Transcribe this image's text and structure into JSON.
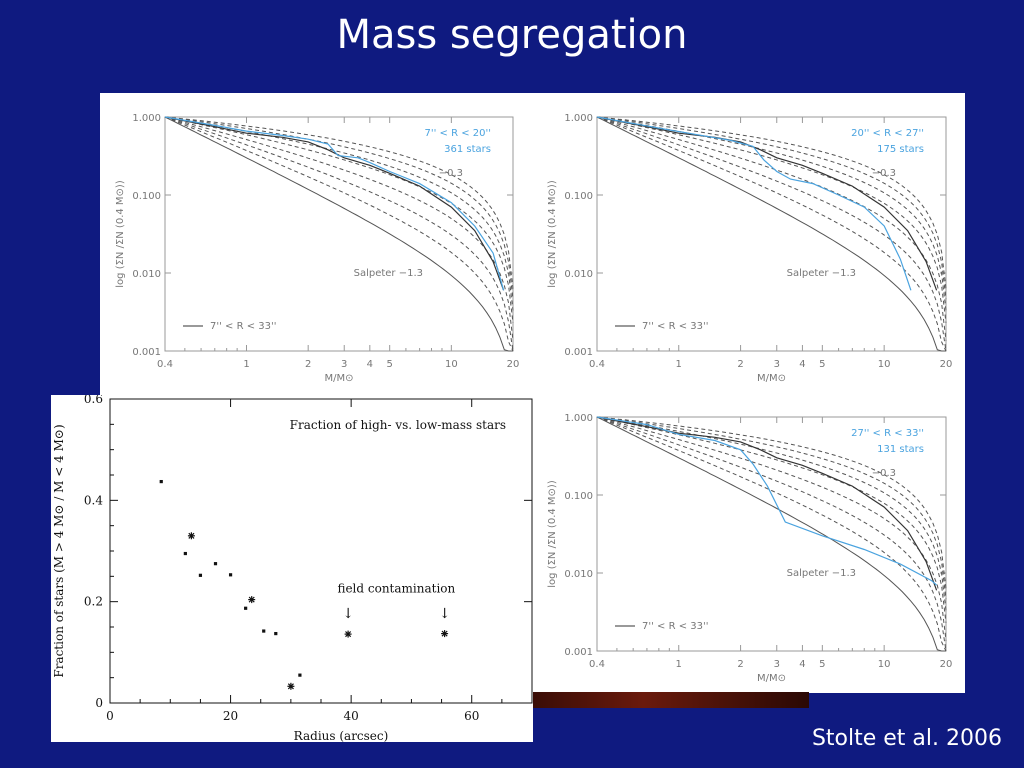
{
  "slide": {
    "title": "Mass segregation",
    "credit": "Stolte et al. 2006"
  },
  "colors": {
    "background": "#0f1a80",
    "highlight": "#4aa3df",
    "curve": "#333333"
  },
  "chart_data": [
    {
      "type": "line",
      "panel": "top-left",
      "xlabel": "M/M⊙",
      "ylabel": "log (ΣN /ΣN (0.4 M⊙))",
      "xscale": "log",
      "yscale": "log",
      "xlim": [
        0.4,
        20
      ],
      "ylim": [
        0.001,
        1.0
      ],
      "x_ticks": [
        "0.4",
        "1",
        "2",
        "3",
        "4",
        "5",
        "10",
        "20"
      ],
      "y_ticks": [
        "1.000",
        "0.100",
        "0.010",
        "0.001"
      ],
      "annotations": {
        "range": "7'' < R < 20''",
        "count": "361 stars",
        "slope": "−0.3",
        "salpeter": "Salpeter −1.3",
        "legend": "7'' < R < 33''"
      },
      "series": [
        {
          "x": [
            0.4,
            0.7,
            1,
            1.5,
            2,
            2.5,
            3,
            4,
            5,
            7,
            10,
            13,
            16,
            18
          ],
          "y": [
            1,
            0.75,
            0.62,
            0.55,
            0.48,
            0.38,
            0.3,
            0.24,
            0.19,
            0.13,
            0.07,
            0.035,
            0.014,
            0.006
          ]
        },
        {
          "x": [
            0.4,
            0.7,
            1,
            1.5,
            2,
            2.5,
            2.8,
            3.5,
            4,
            5,
            7,
            10,
            13,
            16,
            18
          ],
          "y": [
            1,
            0.78,
            0.66,
            0.58,
            0.52,
            0.45,
            0.32,
            0.3,
            0.26,
            0.2,
            0.14,
            0.08,
            0.04,
            0.018,
            0.006
          ]
        }
      ]
    },
    {
      "type": "line",
      "panel": "top-right",
      "xlabel": "M/M⊙",
      "ylabel": "log (ΣN /ΣN (0.4 M⊙))",
      "xscale": "log",
      "yscale": "log",
      "xlim": [
        0.4,
        20
      ],
      "ylim": [
        0.001,
        1.0
      ],
      "x_ticks": [
        "0.4",
        "1",
        "2",
        "3",
        "4",
        "5",
        "10",
        "20"
      ],
      "y_ticks": [
        "1.000",
        "0.100",
        "0.010",
        "0.001"
      ],
      "annotations": {
        "range": "20'' < R < 27''",
        "count": "175 stars",
        "slope": "−0.3",
        "salpeter": "Salpeter −1.3",
        "legend": "7'' < R < 33''"
      },
      "series": [
        {
          "x": [
            0.4,
            0.7,
            1,
            1.5,
            2,
            2.5,
            3,
            4,
            5,
            7,
            10,
            13,
            16,
            18
          ],
          "y": [
            1,
            0.75,
            0.62,
            0.55,
            0.48,
            0.38,
            0.3,
            0.24,
            0.19,
            0.13,
            0.07,
            0.035,
            0.014,
            0.006
          ]
        },
        {
          "x": [
            0.4,
            0.8,
            1.2,
            1.8,
            2.3,
            2.6,
            3,
            3.5,
            4.5,
            6,
            8,
            10,
            12,
            13.5
          ],
          "y": [
            1,
            0.72,
            0.6,
            0.5,
            0.42,
            0.28,
            0.2,
            0.16,
            0.14,
            0.1,
            0.07,
            0.04,
            0.015,
            0.006
          ]
        }
      ]
    },
    {
      "type": "line",
      "panel": "bottom-right",
      "xlabel": "M/M⊙",
      "ylabel": "log (ΣN /ΣN (0.4 M⊙))",
      "xscale": "log",
      "yscale": "log",
      "xlim": [
        0.4,
        20
      ],
      "ylim": [
        0.001,
        1.0
      ],
      "x_ticks": [
        "0.4",
        "1",
        "2",
        "3",
        "4",
        "5",
        "10",
        "20"
      ],
      "y_ticks": [
        "1.000",
        "0.100",
        "0.010",
        "0.001"
      ],
      "annotations": {
        "range": "27'' < R < 33''",
        "count": "131 stars",
        "slope": "−0.3",
        "salpeter": "Salpeter −1.3",
        "legend": "7'' < R < 33''"
      },
      "series": [
        {
          "x": [
            0.4,
            0.7,
            1,
            1.5,
            2,
            2.5,
            3,
            4,
            5,
            7,
            10,
            13,
            16,
            18
          ],
          "y": [
            1,
            0.75,
            0.62,
            0.55,
            0.48,
            0.38,
            0.3,
            0.24,
            0.19,
            0.13,
            0.07,
            0.035,
            0.014,
            0.006
          ]
        },
        {
          "x": [
            0.4,
            0.7,
            1,
            1.5,
            2,
            2.3,
            2.7,
            3.3,
            5,
            8,
            12,
            17,
            18
          ],
          "y": [
            1,
            0.8,
            0.6,
            0.5,
            0.38,
            0.25,
            0.13,
            0.045,
            0.03,
            0.02,
            0.013,
            0.008,
            0.007
          ]
        }
      ]
    },
    {
      "type": "scatter",
      "panel": "inset",
      "title": "Fraction of high- vs. low-mass stars",
      "xlabel": "Radius (arcsec)",
      "ylabel": "Fraction of stars (M > 4 M⊙ / M < 4 M⊙)",
      "xlim": [
        0,
        70
      ],
      "ylim": [
        0,
        0.6
      ],
      "x_ticks": [
        "0",
        "20",
        "40",
        "60"
      ],
      "y_ticks": [
        "0",
        "0.2",
        "0.4",
        "0.6"
      ],
      "annotation": "field contamination",
      "points": [
        {
          "x": 8.5,
          "y": 0.437
        },
        {
          "x": 12.5,
          "y": 0.295
        },
        {
          "x": 15,
          "y": 0.252
        },
        {
          "x": 17.5,
          "y": 0.275
        },
        {
          "x": 20,
          "y": 0.253
        },
        {
          "x": 22.5,
          "y": 0.187
        },
        {
          "x": 25.5,
          "y": 0.142
        },
        {
          "x": 27.5,
          "y": 0.137
        },
        {
          "x": 31.5,
          "y": 0.055
        }
      ],
      "star_points": [
        {
          "x": 13.5,
          "y": 0.33
        },
        {
          "x": 23.5,
          "y": 0.204
        },
        {
          "x": 30,
          "y": 0.033
        },
        {
          "x": 39.5,
          "y": 0.136
        },
        {
          "x": 55.5,
          "y": 0.137
        }
      ]
    }
  ]
}
